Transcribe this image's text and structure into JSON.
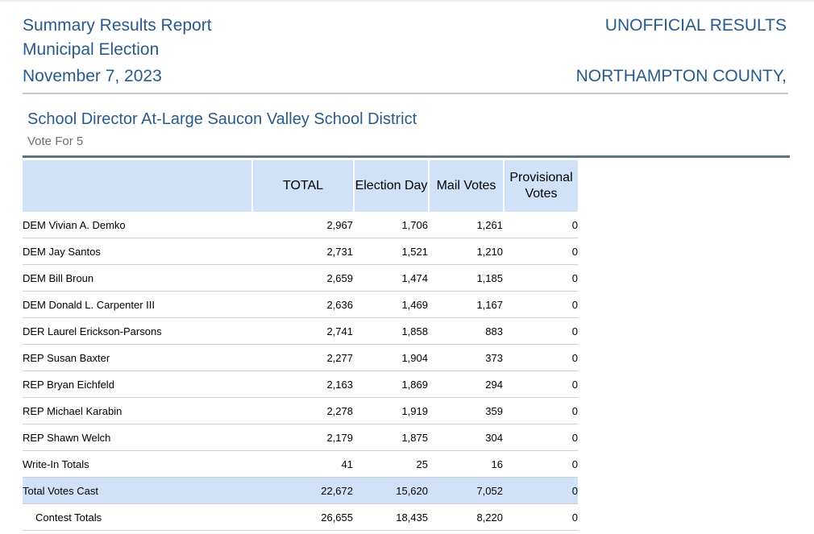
{
  "header": {
    "report_title": "Summary Results Report",
    "election_name": "Municipal Election",
    "election_date": "November 7, 2023",
    "status": "UNOFFICIAL RESULTS",
    "county": "NORTHAMPTON COUNTY,"
  },
  "contest": {
    "title": "School Director At-Large Saucon Valley School District",
    "vote_for": "Vote For 5"
  },
  "table": {
    "columns": [
      "TOTAL",
      "Election Day",
      "Mail Votes",
      "Provisional Votes"
    ],
    "rows": [
      {
        "name": "DEM Vivian A. Demko",
        "total": "2,967",
        "election_day": "1,706",
        "mail": "1,261",
        "provisional": "0"
      },
      {
        "name": "DEM Jay Santos",
        "total": "2,731",
        "election_day": "1,521",
        "mail": "1,210",
        "provisional": "0"
      },
      {
        "name": "DEM Bill Broun",
        "total": "2,659",
        "election_day": "1,474",
        "mail": "1,185",
        "provisional": "0"
      },
      {
        "name": "DEM Donald L. Carpenter III",
        "total": "2,636",
        "election_day": "1,469",
        "mail": "1,167",
        "provisional": "0"
      },
      {
        "name": "DER Laurel Erickson-Parsons",
        "total": "2,741",
        "election_day": "1,858",
        "mail": "883",
        "provisional": "0"
      },
      {
        "name": "REP Susan Baxter",
        "total": "2,277",
        "election_day": "1,904",
        "mail": "373",
        "provisional": "0"
      },
      {
        "name": "REP Bryan Eichfeld",
        "total": "2,163",
        "election_day": "1,869",
        "mail": "294",
        "provisional": "0"
      },
      {
        "name": "REP Michael Karabin",
        "total": "2,278",
        "election_day": "1,919",
        "mail": "359",
        "provisional": "0"
      },
      {
        "name": "REP Shawn Welch",
        "total": "2,179",
        "election_day": "1,875",
        "mail": "304",
        "provisional": "0"
      },
      {
        "name": "Write-In Totals",
        "total": "41",
        "election_day": "25",
        "mail": "16",
        "provisional": "0"
      }
    ],
    "total_votes_cast": {
      "name": "Total Votes Cast",
      "total": "22,672",
      "election_day": "15,620",
      "mail": "7,052",
      "provisional": "0"
    },
    "contest_totals": {
      "name": "Contest Totals",
      "total": "26,655",
      "election_day": "18,435",
      "mail": "8,220",
      "provisional": "0"
    }
  },
  "colors": {
    "header_text": "#2a5a8a",
    "table_header_bg": "#cfe2f8",
    "divider": "#5c7380"
  }
}
